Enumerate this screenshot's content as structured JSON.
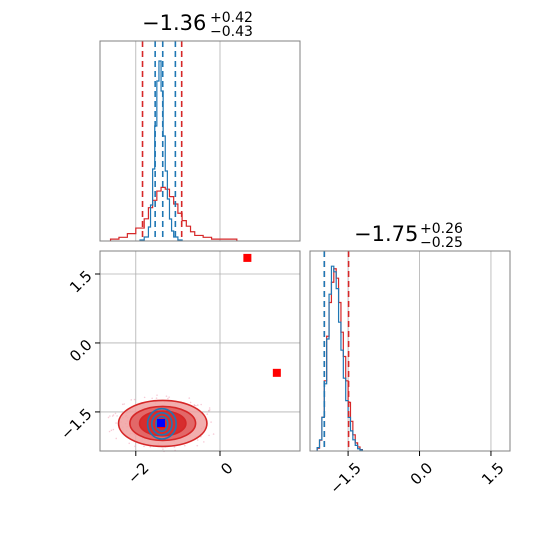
{
  "colors": {
    "red": "#d62728",
    "blue": "#1f77b4",
    "red_fill_dark": "#d62728",
    "red_fill_light": "#f0a0a0",
    "axis": "#808080",
    "grid": "#b0b0b0",
    "marker_red": "#ff0000",
    "marker_blue": "#0000ff"
  },
  "chart_data": [
    {
      "type": "histogram",
      "panel": "top-left",
      "title": {
        "value": "−1.36",
        "upper": "+0.42",
        "lower": "−0.43"
      },
      "xlim": [
        -2.85,
        1.9
      ],
      "grid": true,
      "quantile_lines": [
        {
          "series": "red",
          "values": [
            -1.84,
            -0.91
          ]
        },
        {
          "series": "blue",
          "values": [
            -1.54,
            -1.36,
            -1.06
          ]
        }
      ],
      "series": [
        {
          "name": "",
          "color": "red",
          "bins": [
            -2.6,
            -2.4,
            -2.2,
            -2.0,
            -1.8,
            -1.7,
            -1.6,
            -1.5,
            -1.4,
            -1.3,
            -1.2,
            -1.1,
            -1.0,
            -0.9,
            -0.8,
            -0.7,
            -0.6,
            -0.4,
            -0.2,
            0.0,
            0.2,
            0.4
          ],
          "counts": [
            1,
            2,
            4,
            7,
            12,
            18,
            22,
            27,
            29,
            28,
            24,
            20,
            15,
            11,
            8,
            5,
            3,
            2,
            1,
            1,
            1
          ]
        },
        {
          "name": "",
          "color": "blue",
          "bins": [
            -1.9,
            -1.8,
            -1.7,
            -1.65,
            -1.6,
            -1.55,
            -1.5,
            -1.45,
            -1.4,
            -1.35,
            -1.3,
            -1.25,
            -1.2,
            -1.15,
            -1.1,
            -1.0,
            -0.9
          ],
          "counts": [
            1,
            4,
            14,
            36,
            72,
            115,
            160,
            180,
            150,
            105,
            70,
            42,
            22,
            10,
            4,
            1
          ]
        }
      ]
    },
    {
      "type": "histogram",
      "panel": "bottom-right",
      "title": {
        "value": "−1.75",
        "upper": "+0.26",
        "lower": "−0.25"
      },
      "xlim": [
        -2.3,
        1.9
      ],
      "xticks": [
        -1.5,
        0.0,
        1.5
      ],
      "xtick_labels": [
        "−1.5",
        "0.0",
        "1.5"
      ],
      "grid": true,
      "quantile_lines": [
        {
          "series": "red",
          "values": [
            -2.0,
            -1.49
          ]
        },
        {
          "series": "blue",
          "values": [
            -2.0
          ]
        }
      ],
      "series": [
        {
          "name": "",
          "color": "red",
          "bins": [
            -2.15,
            -2.1,
            -2.05,
            -2.0,
            -1.95,
            -1.9,
            -1.85,
            -1.8,
            -1.75,
            -1.7,
            -1.65,
            -1.6,
            -1.55,
            -1.5,
            -1.45,
            -1.4,
            -1.35,
            -1.3,
            -1.25,
            -1.2
          ],
          "counts": [
            2,
            8,
            25,
            52,
            85,
            110,
            125,
            135,
            128,
            110,
            88,
            70,
            52,
            36,
            22,
            12,
            6,
            3,
            1
          ]
        },
        {
          "name": "",
          "color": "blue",
          "bins": [
            -2.15,
            -2.1,
            -2.05,
            -2.0,
            -1.95,
            -1.9,
            -1.85,
            -1.8,
            -1.75,
            -1.7,
            -1.65,
            -1.6,
            -1.55,
            -1.5,
            -1.45,
            -1.4,
            -1.35,
            -1.3,
            -1.25,
            -1.2
          ],
          "counts": [
            3,
            10,
            30,
            60,
            100,
            140,
            165,
            160,
            145,
            115,
            90,
            65,
            45,
            30,
            18,
            10,
            5,
            2,
            1
          ]
        }
      ]
    },
    {
      "type": "scatter",
      "panel": "bottom-left",
      "xlim": [
        -2.85,
        1.9
      ],
      "ylim": [
        -2.35,
        2.0
      ],
      "xticks": [
        -2,
        0
      ],
      "xtick_labels": [
        "−2",
        "0"
      ],
      "yticks": [
        1.5,
        0.0,
        -1.5
      ],
      "ytick_labels": [
        "1.5",
        "0.0",
        "−1.5"
      ],
      "grid": true,
      "contours": [
        {
          "color": "red",
          "filled": true,
          "levels": [
            {
              "cx": -1.36,
              "cy": -1.75,
              "rx": 1.05,
              "ry": 0.5
            },
            {
              "cx": -1.36,
              "cy": -1.75,
              "rx": 0.78,
              "ry": 0.37
            },
            {
              "cx": -1.36,
              "cy": -1.75,
              "rx": 0.55,
              "ry": 0.27
            }
          ]
        },
        {
          "color": "blue",
          "filled": false,
          "levels": [
            {
              "cx": -1.38,
              "cy": -1.76,
              "rx": 0.34,
              "ry": 0.33
            },
            {
              "cx": -1.38,
              "cy": -1.76,
              "rx": 0.24,
              "ry": 0.24
            },
            {
              "cx": -1.38,
              "cy": -1.76,
              "rx": 0.14,
              "ry": 0.16
            }
          ]
        }
      ],
      "markers": [
        {
          "color": "marker_red",
          "x": 0.65,
          "y": 1.85
        },
        {
          "color": "marker_red",
          "x": 1.35,
          "y": -0.65
        },
        {
          "color": "marker_red",
          "x": -1.4,
          "y": -1.76
        },
        {
          "color": "marker_blue",
          "x": -1.4,
          "y": -1.74
        }
      ]
    }
  ]
}
